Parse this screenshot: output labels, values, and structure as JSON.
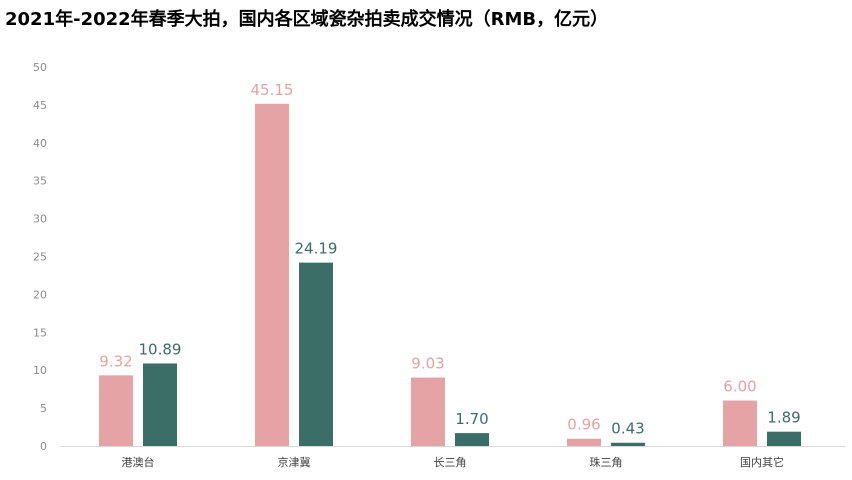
{
  "chart_data": {
    "type": "bar",
    "title": "2021年-2022年春季大拍，国内各区域瓷杂拍卖成交情况（RMB，亿元）",
    "categories": [
      "港澳台",
      "京津冀",
      "长三角",
      "珠三角",
      "国内其它"
    ],
    "series": [
      {
        "values": [
          9.32,
          45.15,
          9.03,
          0.96,
          6.0
        ],
        "labels": [
          "9.32",
          "45.15",
          "9.03",
          "0.96",
          "6.00"
        ],
        "color": "#e5a3a5"
      },
      {
        "values": [
          10.89,
          24.19,
          1.7,
          0.43,
          1.89
        ],
        "labels": [
          "10.89",
          "24.19",
          "1.70",
          "0.43",
          "1.89"
        ],
        "color": "#3b6e67"
      }
    ],
    "yticks": [
      "0",
      "5",
      "10",
      "15",
      "20",
      "25",
      "30",
      "35",
      "40",
      "45",
      "50"
    ],
    "ylim": [
      0,
      50
    ],
    "xlabel": "",
    "ylabel": "",
    "grid": false,
    "legend": "none"
  }
}
